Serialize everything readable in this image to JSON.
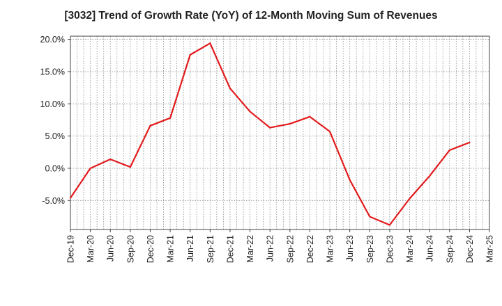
{
  "chart_data": {
    "type": "line",
    "title": "[3032]  Trend of Growth Rate (YoY) of 12-Month Moving Sum of Revenues",
    "xlabel": "",
    "ylabel": "",
    "x_tick_labels": [
      "Dec-19",
      "Mar-20",
      "Jun-20",
      "Sep-20",
      "Dec-20",
      "Mar-21",
      "Jun-21",
      "Sep-21",
      "Dec-21",
      "Mar-22",
      "Jun-22",
      "Sep-22",
      "Dec-22",
      "Mar-23",
      "Jun-23",
      "Sep-23",
      "Dec-23",
      "Mar-24",
      "Jun-24",
      "Sep-24",
      "Dec-24",
      "Mar-25"
    ],
    "y_tick_labels": [
      "20.0%",
      "15.0%",
      "10.0%",
      "5.0%",
      "0.0%",
      "-5.0%"
    ],
    "y_ticks": [
      20,
      15,
      10,
      5,
      0,
      -5
    ],
    "ylim": [
      -9.5,
      20.5
    ],
    "grid": true,
    "colors": {
      "line": "#e31a1c",
      "grid": "#888888",
      "axis": "#444444"
    },
    "series": [
      {
        "x": [
          "Dec-19",
          "Mar-20",
          "Jun-20",
          "Sep-20",
          "Dec-20",
          "Mar-21",
          "Jun-21",
          "Sep-21",
          "Dec-21",
          "Mar-22",
          "Jun-22",
          "Sep-22",
          "Dec-22",
          "Mar-23",
          "Jun-23",
          "Sep-23",
          "Dec-23",
          "Mar-24",
          "Jun-24",
          "Sep-24",
          "Dec-24"
        ],
        "values": [
          -4.6,
          0.0,
          1.4,
          0.2,
          6.6,
          7.8,
          17.6,
          19.4,
          12.4,
          8.8,
          6.3,
          6.9,
          8.0,
          5.7,
          -1.8,
          -7.5,
          -8.8,
          -4.7,
          -1.2,
          2.8,
          4.0
        ]
      }
    ]
  }
}
